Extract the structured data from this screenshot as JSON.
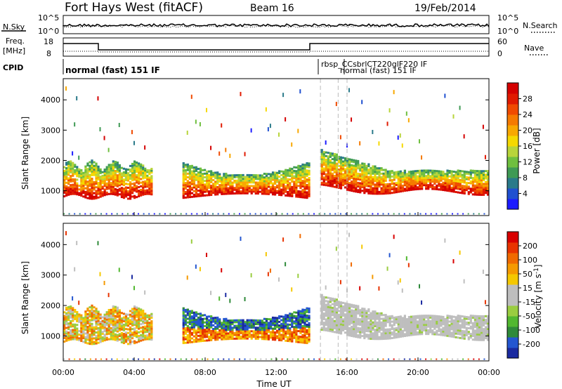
{
  "header": {
    "station": "Fort Hays West (fitACF)",
    "beam": "Beam 16",
    "date": "19/Feb/2014"
  },
  "strip": {
    "nsky_label": "N.Sky",
    "nsearch_label": "N.Search",
    "nsky_ticks": [
      "10^5",
      "10^0"
    ],
    "nsearch_ticks": [
      "10^5",
      "10^0"
    ],
    "freq_label": "Freq.",
    "freq_unit": "[MHz]",
    "freq_ticks": [
      "18",
      "8"
    ],
    "nave_label": "Nave",
    "nave_ticks": [
      "60",
      "0"
    ],
    "cpid_label": "CPID",
    "cpid_text_1": "normal (fast) 151 IF",
    "cpid_text_2": "rbsp_CCsbrlCT220glF220 IF",
    "cpid_text_3": "normal (fast) 151 IF"
  },
  "colorbars": {
    "power": {
      "label": "Power [dB]",
      "ticks": [
        "28",
        "24",
        "20",
        "16",
        "12",
        "8",
        "4"
      ],
      "colors": [
        "#1c1cff",
        "#2050d0",
        "#2a7a8a",
        "#3f9a55",
        "#6fbf3f",
        "#b8d43a",
        "#f5d800",
        "#f8a800",
        "#f57a00",
        "#f04a00",
        "#e01a00",
        "#d40000"
      ]
    },
    "velocity": {
      "label": "Velocity [m s",
      "label_sup": "-1",
      "label_end": "]",
      "ticks": [
        "200",
        "100",
        "50",
        "15",
        "-15",
        "-50",
        "-100",
        "-200"
      ],
      "colors": [
        "#1a2aa0",
        "#2456d0",
        "#2f8a3a",
        "#52b830",
        "#9acd40",
        "#bebebe",
        "#bebebe",
        "#f5c800",
        "#f59a00",
        "#f06a00",
        "#e83400",
        "#d80000"
      ]
    }
  },
  "chart_data": [
    {
      "type": "heatmap",
      "title": "Power",
      "ylabel": "Slant Range [km]",
      "xlabel": "Time UT",
      "x_ticks": [
        "00:00",
        "04:00",
        "08:00",
        "12:00",
        "16:00",
        "20:00",
        "00:00"
      ],
      "y_ticks": [
        1000,
        2000,
        3000,
        4000
      ],
      "xlim": [
        0,
        24
      ],
      "ylim": [
        180,
        4700
      ],
      "colorbar_ticks": [
        4,
        8,
        12,
        16,
        20,
        24,
        28
      ],
      "scatter_bands": [
        {
          "t_start": 0.0,
          "t_end": 5.0,
          "r_low": 800,
          "r_high": 2100
        },
        {
          "t_start": 6.7,
          "t_end": 13.9,
          "r_low": 700,
          "r_high": 2000
        },
        {
          "t_start": 14.4,
          "t_end": 24.0,
          "r_low": 900,
          "r_high": 2300
        }
      ]
    },
    {
      "type": "heatmap",
      "title": "Velocity",
      "ylabel": "Slant Range [km]",
      "xlabel": "Time UT",
      "x_ticks": [
        "00:00",
        "04:00",
        "08:00",
        "12:00",
        "16:00",
        "20:00",
        "00:00"
      ],
      "y_ticks": [
        1000,
        2000,
        3000,
        4000
      ],
      "xlim": [
        0,
        24
      ],
      "ylim": [
        180,
        4700
      ],
      "colorbar_ticks": [
        -200,
        -100,
        -50,
        -15,
        15,
        50,
        100,
        200
      ]
    }
  ],
  "xaxis": {
    "ticks": [
      "00:00",
      "04:00",
      "08:00",
      "12:00",
      "16:00",
      "20:00",
      "00:00"
    ],
    "label": "Time UT"
  },
  "yaxis": {
    "label": "Slant Range [km]",
    "ticks": [
      "1000",
      "2000",
      "3000",
      "4000"
    ]
  }
}
